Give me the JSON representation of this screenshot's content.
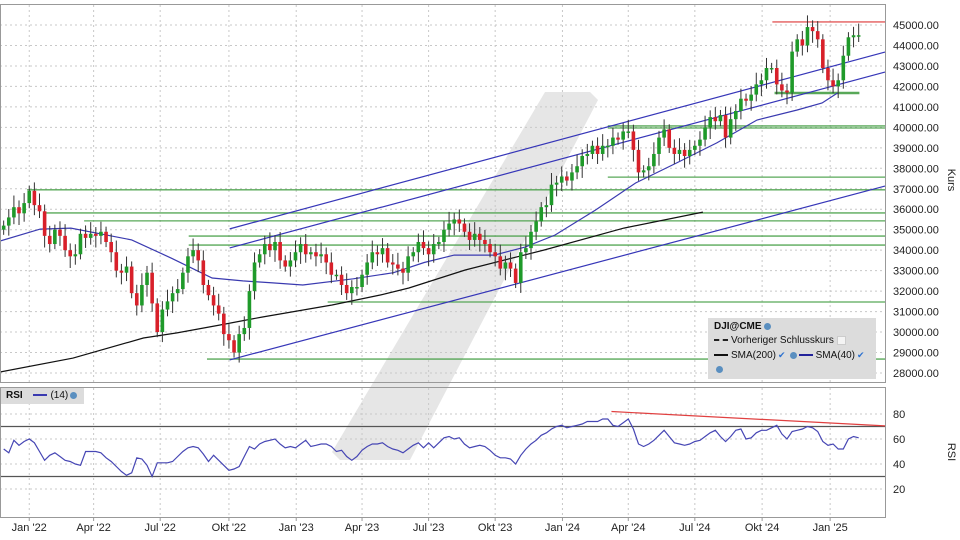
{
  "chart_data": [
    {
      "type": "candlestick",
      "symbol": "DJI@CME",
      "ylabel": "Kurs",
      "ylim": [
        28000,
        45000
      ],
      "y_ticks": [
        "45000.00",
        "44000.00",
        "43000.00",
        "42000.00",
        "41000.00",
        "40000.00",
        "39000.00",
        "38000.00",
        "37000.00",
        "36000.00",
        "35000.00",
        "34000.00",
        "33000.00",
        "32000.00",
        "31000.00",
        "30000.00",
        "29000.00",
        "28000.00"
      ],
      "x_range": [
        "2021-11-24",
        "2025-03-18"
      ],
      "x_ticks": [
        {
          "label": "Jan '22",
          "date": "2022-01-03"
        },
        {
          "label": "Apr '22",
          "date": "2022-04-01"
        },
        {
          "label": "Jul '22",
          "date": "2022-07-01"
        },
        {
          "label": "Okt '22",
          "date": "2022-10-03"
        },
        {
          "label": "Jan '23",
          "date": "2023-01-03"
        },
        {
          "label": "Apr '23",
          "date": "2023-04-03"
        },
        {
          "label": "Jul '23",
          "date": "2023-07-03"
        },
        {
          "label": "Okt '23",
          "date": "2023-10-02"
        },
        {
          "label": "Jan '24",
          "date": "2024-01-02"
        },
        {
          "label": "Apr '24",
          "date": "2024-04-01"
        },
        {
          "label": "Jul '24",
          "date": "2024-07-01"
        },
        {
          "label": "Okt '24",
          "date": "2024-10-01"
        },
        {
          "label": "Jan '25",
          "date": "2025-01-02"
        }
      ],
      "grid": true,
      "interval": "weekly",
      "first_week": "2021-11-29",
      "closes": [
        35200,
        35600,
        36100,
        35800,
        36300,
        36900,
        36200,
        35900,
        34700,
        34300,
        35000,
        34700,
        34000,
        33700,
        33800,
        34800,
        34600,
        34800,
        34700,
        34900,
        34400,
        33900,
        33000,
        32900,
        33200,
        31900,
        31300,
        32300,
        32900,
        31400,
        30000,
        31100,
        31500,
        31900,
        32100,
        32900,
        33700,
        34000,
        33500,
        32300,
        31800,
        31300,
        30900,
        29900,
        29600,
        29000,
        29900,
        30200,
        32000,
        33400,
        33800,
        34300,
        34000,
        34400,
        33500,
        33200,
        33500,
        33900,
        34300,
        33800,
        33900,
        33700,
        33800,
        33400,
        32800,
        32800,
        32300,
        31900,
        32200,
        32200,
        32800,
        33400,
        33900,
        33800,
        34100,
        33400,
        33300,
        33100,
        32900,
        33700,
        33900,
        34400,
        34100,
        33800,
        34300,
        34400,
        35000,
        35300,
        35500,
        35300,
        34900,
        34500,
        34800,
        34500,
        34300,
        33900,
        33700,
        33100,
        33400,
        33100,
        32400,
        33900,
        34100,
        34900,
        35400,
        36100,
        36200,
        37200,
        37300,
        37600,
        37400,
        37800,
        38100,
        38600,
        38700,
        39100,
        38700,
        39100,
        39100,
        39500,
        39400,
        39800,
        39800,
        38900,
        37800,
        37900,
        38100,
        38700,
        39500,
        39900,
        39000,
        38700,
        38900,
        38600,
        38900,
        39100,
        39400,
        40000,
        40500,
        40300,
        40600,
        39500,
        40400,
        40800,
        41400,
        41300,
        41600,
        42100,
        42300,
        42900,
        42900,
        42100,
        41800,
        41700,
        43700,
        44300,
        44000,
        44900,
        44700,
        44300,
        42900,
        42300,
        42000,
        42300,
        43500,
        44400,
        44500,
        44500
      ],
      "first_open": 35000,
      "colors": {
        "up": "#1f9a2a",
        "down": "#d8202a",
        "wick": "#333333",
        "sma200": "#111111",
        "sma40": "#3a3ab0",
        "channel": "#3636b8",
        "support": "#3c9a3c",
        "resistance": "#e04040"
      },
      "series": [
        {
          "name": "SMA(200)",
          "points": [
            [
              "2021-11-24",
              28050
            ],
            [
              "2022-03-04",
              28730
            ],
            [
              "2022-06-08",
              29710
            ],
            [
              "2022-07-24",
              29960
            ],
            [
              "2022-09-20",
              30340
            ],
            [
              "2022-11-17",
              30730
            ],
            [
              "2023-02-21",
              31320
            ],
            [
              "2023-04-28",
              31810
            ],
            [
              "2023-06-06",
              32150
            ],
            [
              "2023-08-22",
              33030
            ],
            [
              "2023-12-08",
              34010
            ],
            [
              "2024-03-26",
              35080
            ],
            [
              "2024-07-12",
              35860
            ]
          ]
        },
        {
          "name": "SMA(40)",
          "points": [
            [
              "2021-11-24",
              34450
            ],
            [
              "2022-01-18",
              35030
            ],
            [
              "2022-03-01",
              35080
            ],
            [
              "2022-05-23",
              34500
            ],
            [
              "2022-07-17",
              33600
            ],
            [
              "2022-09-10",
              32640
            ],
            [
              "2022-10-22",
              32500
            ],
            [
              "2022-12-02",
              32400
            ],
            [
              "2023-01-12",
              32300
            ],
            [
              "2023-03-22",
              32600
            ],
            [
              "2023-05-16",
              32900
            ],
            [
              "2023-06-27",
              33400
            ],
            [
              "2023-08-07",
              33760
            ],
            [
              "2023-10-01",
              33760
            ],
            [
              "2023-11-12",
              34150
            ],
            [
              "2023-12-23",
              34740
            ],
            [
              "2024-02-16",
              35960
            ],
            [
              "2024-04-11",
              37280
            ],
            [
              "2024-06-06",
              38260
            ],
            [
              "2024-07-31",
              39240
            ],
            [
              "2024-09-24",
              40360
            ],
            [
              "2024-11-18",
              40850
            ],
            [
              "2024-12-22",
              41190
            ],
            [
              "2025-01-12",
              41680
            ]
          ]
        }
      ],
      "trendlines": [
        {
          "from": [
            "2022-10-04",
            35040
          ],
          "to": [
            "2025-03-18",
            43680
          ],
          "color": "channel"
        },
        {
          "from": [
            "2022-10-04",
            34110
          ],
          "to": [
            "2025-03-18",
            42700
          ],
          "color": "channel"
        },
        {
          "from": [
            "2022-10-04",
            28640
          ],
          "to": [
            "2025-03-18",
            37130
          ],
          "color": "channel"
        }
      ],
      "horizontal_lines": [
        {
          "price": 36950,
          "from": "2021-12-31",
          "color": "support"
        },
        {
          "price": 35820,
          "from": "2022-01-26",
          "color": "support"
        },
        {
          "price": 35430,
          "from": "2022-03-19",
          "color": "support"
        },
        {
          "price": 34690,
          "from": "2022-08-09",
          "color": "support"
        },
        {
          "price": 34250,
          "from": "2022-08-09",
          "color": "support"
        },
        {
          "price": 28680,
          "from": "2022-09-03",
          "color": "support"
        },
        {
          "price": 31470,
          "from": "2023-02-15",
          "color": "support"
        },
        {
          "price": 37570,
          "from": "2024-03-04",
          "color": "support"
        },
        {
          "price": 40070,
          "from": "2024-03-04",
          "color": "support"
        },
        {
          "price": 39970,
          "from": "2024-03-04",
          "color": "support"
        },
        {
          "price": 41680,
          "from": "2024-10-18",
          "to": "2025-02-11",
          "color": "support",
          "thick": true
        },
        {
          "price": 45150,
          "from": "2024-10-15",
          "color": "resistance"
        }
      ],
      "legend": {
        "title": "DJI@CME",
        "prev_close": "Vorheriger Schlusskurs",
        "sma200": "SMA(200)",
        "sma40": "SMA(40)",
        "placement": "bottom-right"
      }
    },
    {
      "type": "line",
      "name": "RSI",
      "ylabel": "RSI",
      "period_label": "(14)",
      "ylim": [
        10,
        90
      ],
      "y_ticks": [
        "80",
        "60",
        "40",
        "20"
      ],
      "levels": [
        70,
        30
      ],
      "values": [
        52,
        49,
        59,
        55,
        58,
        60,
        57,
        50,
        43,
        47,
        49,
        46,
        43,
        42,
        40,
        39,
        50,
        50,
        50,
        49,
        45,
        42,
        38,
        34,
        31,
        33,
        45,
        44,
        39,
        30,
        41,
        41,
        41,
        42,
        46,
        50,
        53,
        54,
        53,
        48,
        42,
        47,
        43,
        39,
        35,
        36,
        38,
        46,
        54,
        52,
        56,
        58,
        59,
        60,
        56,
        53,
        54,
        53,
        56,
        59,
        54,
        55,
        56,
        56,
        54,
        50,
        51,
        46,
        43,
        46,
        51,
        54,
        56,
        56,
        57,
        54,
        52,
        51,
        49,
        52,
        55,
        57,
        53,
        57,
        53,
        57,
        61,
        62,
        60,
        61,
        56,
        53,
        54,
        55,
        54,
        51,
        47,
        45,
        45,
        44,
        40,
        47,
        52,
        56,
        59,
        63,
        65,
        68,
        70,
        71,
        69,
        70,
        71,
        72,
        74,
        74,
        74,
        76,
        76,
        71,
        70,
        73,
        76,
        68,
        56,
        54,
        56,
        59,
        63,
        67,
        62,
        57,
        56,
        55,
        56,
        58,
        59,
        62,
        65,
        67,
        62,
        58,
        62,
        67,
        68,
        60,
        61,
        65,
        67,
        67,
        69,
        71,
        64,
        60,
        66,
        67,
        68,
        70,
        69,
        66,
        58,
        55,
        56,
        52,
        52,
        60,
        62,
        61
      ],
      "trendline": {
        "from": [
          "2024-03-09",
          82
        ],
        "to": [
          "2025-03-18",
          70.5
        ],
        "color": "#e04040"
      },
      "line_color": "#4646b4"
    }
  ]
}
